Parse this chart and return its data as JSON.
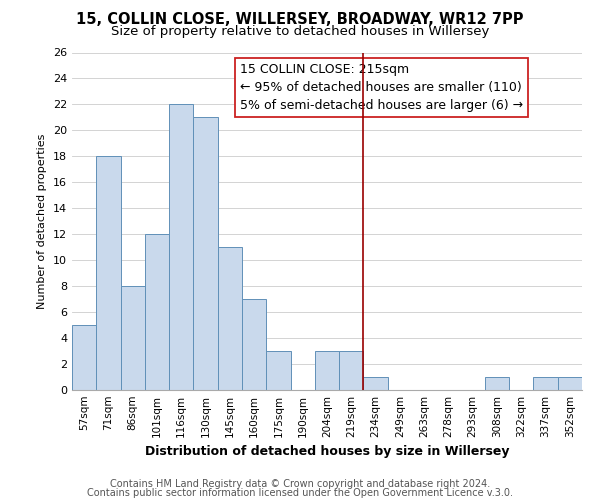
{
  "title": "15, COLLIN CLOSE, WILLERSEY, BROADWAY, WR12 7PP",
  "subtitle": "Size of property relative to detached houses in Willersey",
  "xlabel": "Distribution of detached houses by size in Willersey",
  "ylabel": "Number of detached properties",
  "bar_labels": [
    "57sqm",
    "71sqm",
    "86sqm",
    "101sqm",
    "116sqm",
    "130sqm",
    "145sqm",
    "160sqm",
    "175sqm",
    "190sqm",
    "204sqm",
    "219sqm",
    "234sqm",
    "249sqm",
    "263sqm",
    "278sqm",
    "293sqm",
    "308sqm",
    "322sqm",
    "337sqm",
    "352sqm"
  ],
  "bar_heights": [
    5,
    18,
    8,
    12,
    22,
    21,
    11,
    7,
    3,
    0,
    3,
    3,
    1,
    0,
    0,
    0,
    0,
    1,
    0,
    1,
    1
  ],
  "bar_color": "#c9d9ec",
  "bar_edgecolor": "#6090b8",
  "vline_x": 11.5,
  "vline_color": "#990000",
  "ylim": [
    0,
    26
  ],
  "yticks": [
    0,
    2,
    4,
    6,
    8,
    10,
    12,
    14,
    16,
    18,
    20,
    22,
    24,
    26
  ],
  "annotation_title": "15 COLLIN CLOSE: 215sqm",
  "annotation_line1": "← 95% of detached houses are smaller (110)",
  "annotation_line2": "5% of semi-detached houses are larger (6) →",
  "footer1": "Contains HM Land Registry data © Crown copyright and database right 2024.",
  "footer2": "Contains public sector information licensed under the Open Government Licence v.3.0.",
  "background_color": "#ffffff",
  "grid_color": "#cccccc",
  "title_fontsize": 10.5,
  "subtitle_fontsize": 9.5,
  "annotation_fontsize": 9,
  "footer_fontsize": 7
}
